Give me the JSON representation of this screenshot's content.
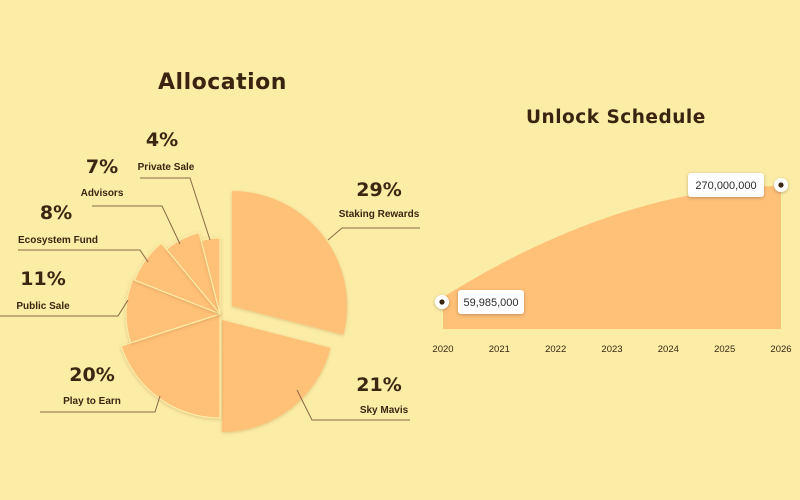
{
  "allocation": {
    "title": "Allocation",
    "chart_data": {
      "type": "pie",
      "title": "Allocation",
      "slices": [
        {
          "label": "Staking Rewards",
          "value": 29,
          "display": "29%"
        },
        {
          "label": "Sky Mavis",
          "value": 21,
          "display": "21%"
        },
        {
          "label": "Play to Earn",
          "value": 20,
          "display": "20%"
        },
        {
          "label": "Public Sale",
          "value": 11,
          "display": "11%"
        },
        {
          "label": "Ecosystem Fund",
          "value": 8,
          "display": "8%"
        },
        {
          "label": "Advisors",
          "value": 7,
          "display": "7%"
        },
        {
          "label": "Private Sale",
          "value": 4,
          "display": "4%"
        }
      ],
      "colors": {
        "slice": "#ffc078",
        "leader": "#8a6a45"
      }
    }
  },
  "unlock": {
    "title": "Unlock Schedule",
    "chart_data": {
      "type": "area",
      "title": "Unlock Schedule",
      "x": [
        "2020",
        "2021",
        "2022",
        "2023",
        "2024",
        "2025",
        "2026"
      ],
      "xlabel": "",
      "ylabel": "",
      "start": {
        "x": "2020",
        "y": 59985000,
        "label": "59,985,000"
      },
      "end": {
        "x": "2026",
        "y": 270000000,
        "label": "270,000,000"
      },
      "colors": {
        "area": "#ffc078"
      }
    }
  }
}
